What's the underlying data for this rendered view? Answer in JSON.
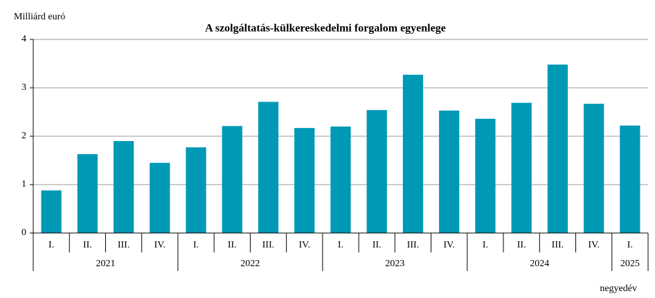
{
  "chart_data": {
    "type": "bar",
    "title": "A szolgáltatás-külkereskedelmi forgalom egyenlege",
    "y_axis_label": "Milliárd euró",
    "x_axis_label": "negyedév",
    "groups": [
      {
        "label": "2021",
        "categories": [
          "I.",
          "II.",
          "III.",
          "IV."
        ]
      },
      {
        "label": "2022",
        "categories": [
          "I.",
          "II.",
          "III.",
          "IV."
        ]
      },
      {
        "label": "2023",
        "categories": [
          "I.",
          "II.",
          "III.",
          "IV."
        ]
      },
      {
        "label": "2024",
        "categories": [
          "I.",
          "II.",
          "III.",
          "IV."
        ]
      },
      {
        "label": "2025",
        "categories": [
          "I."
        ]
      }
    ],
    "values": [
      0.88,
      1.63,
      1.9,
      1.45,
      1.77,
      2.21,
      2.71,
      2.17,
      2.2,
      2.54,
      3.27,
      2.53,
      2.36,
      2.69,
      3.48,
      2.67,
      2.22
    ],
    "color": "#0099b5",
    "ylim": [
      0,
      4
    ],
    "yticks": [
      0,
      1,
      2,
      3,
      4
    ],
    "grid": true
  }
}
